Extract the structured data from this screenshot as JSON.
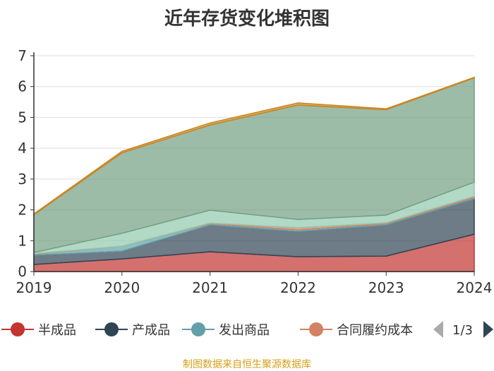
{
  "chart_data": {
    "type": "area",
    "stacked": true,
    "title": "近年存货变化堆积图",
    "categories": [
      "2019",
      "2020",
      "2021",
      "2022",
      "2023",
      "2024"
    ],
    "ylim": [
      0,
      7
    ],
    "yticks": [
      0,
      1,
      2,
      3,
      4,
      5,
      6,
      7
    ],
    "grid": true,
    "legend_placement": "bottom",
    "legend_page": "1/3",
    "series": [
      {
        "name": "半成品",
        "color": "#c23531",
        "values": [
          0.23,
          0.41,
          0.64,
          0.48,
          0.5,
          1.21
        ]
      },
      {
        "name": "产成品",
        "color": "#2f4554",
        "values": [
          0.3,
          0.25,
          0.87,
          0.82,
          1.01,
          1.15
        ]
      },
      {
        "name": "发出商品",
        "color": "#61a0a8",
        "values": [
          0.03,
          0.16,
          0.04,
          0.05,
          0.04,
          0.04
        ]
      },
      {
        "name": "合同履约成本",
        "color": "#d48265",
        "values": [
          0.02,
          0.0,
          0.02,
          0.07,
          0.03,
          0.04
        ]
      },
      {
        "color": "#91c7ae",
        "values": [
          0.04,
          0.42,
          0.42,
          0.27,
          0.25,
          0.46
        ]
      },
      {
        "color": "#749f83",
        "values": [
          1.22,
          2.61,
          2.76,
          3.71,
          3.42,
          3.38
        ]
      },
      {
        "color": "#ca8622",
        "values": [
          0.03,
          0.05,
          0.07,
          0.07,
          0.03,
          0.02
        ]
      }
    ]
  },
  "footer": "制图数据来自恒生聚源数据库"
}
